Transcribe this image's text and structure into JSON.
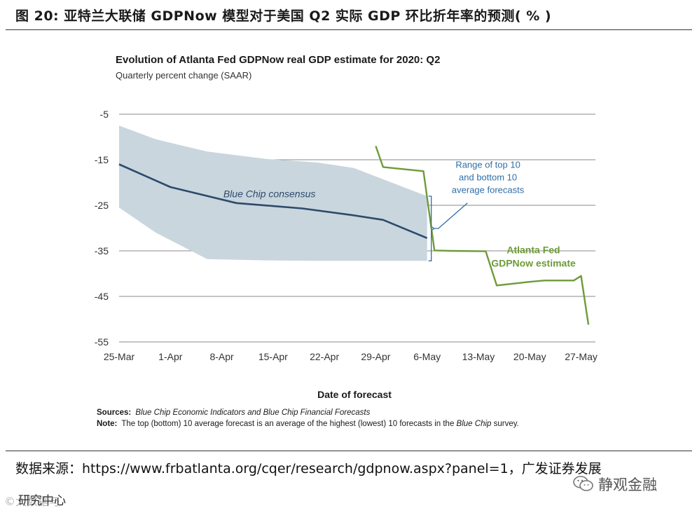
{
  "figure": {
    "title": "图 20: 亚特兰大联储 GDPNow 模型对于美国 Q2 实际 GDP 环比折年率的预测( % )"
  },
  "chart_data": {
    "type": "line",
    "title": "Evolution of Atlanta Fed GDPNow real GDP estimate for 2020: Q2",
    "subtitle": "Quarterly percent change (SAAR)",
    "xlabel": "Date of forecast",
    "ylabel": "",
    "ylim": [
      -55,
      -5
    ],
    "yticks": [
      -5,
      -15,
      -25,
      -35,
      -45,
      -55
    ],
    "x_tick_labels": [
      "25-Mar",
      "1-Apr",
      "8-Apr",
      "15-Apr",
      "22-Apr",
      "29-Apr",
      "6-May",
      "13-May",
      "20-May",
      "27-May"
    ],
    "x_range_days": [
      0,
      64
    ],
    "grid": true,
    "series": [
      {
        "name": "Blue Chip consensus",
        "label": "Blue Chip consensus",
        "color": "#2e4a6b",
        "x": [
          0,
          7,
          16,
          25,
          32,
          36,
          42
        ],
        "y": [
          -16,
          -21,
          -24.5,
          -25.7,
          -27.2,
          -28.2,
          -32.2
        ]
      },
      {
        "name": "Atlanta Fed GDPNow estimate",
        "label": [
          "Atlanta Fed",
          "GDPNow estimate"
        ],
        "color": "#6e9a3a",
        "x": [
          35,
          36,
          41.5,
          43,
          45,
          50,
          51.5,
          56,
          58,
          62,
          63,
          64
        ],
        "y": [
          -12,
          -16.6,
          -17.5,
          -34.9,
          -35,
          -35.1,
          -42.6,
          -41.8,
          -41.5,
          -41.5,
          -40.5,
          -51.2
        ]
      }
    ],
    "band": {
      "name": "Range of top 10 and bottom 10 average forecasts",
      "color": "#c9d6de",
      "x": [
        0,
        5,
        12,
        20,
        27,
        32,
        42
      ],
      "upper": [
        -7.5,
        -10.5,
        -13.2,
        -14.8,
        -15.6,
        -16.8,
        -23
      ],
      "lower": [
        -25.5,
        -31,
        -36.8,
        -37.1,
        -37.2,
        -37.2,
        -37.2
      ]
    },
    "annotations": {
      "band_label": [
        "Range of top 10",
        "and bottom 10",
        "average forecasts"
      ]
    },
    "notes": {
      "sources_label": "Sources:",
      "sources_text": "Blue Chip Economic Indicators and Blue Chip Financial Forecasts",
      "note_label": "Note:",
      "note_text_1": "The top (bottom) 10 average forecast is an average of the highest (lowest) 10 forecasts in the ",
      "note_text_italic": "Blue Chip",
      "note_text_2": " survey."
    }
  },
  "footer": {
    "source_line": "数据来源：https://www.frbatlanta.org/cqer/research/gdpnow.aspx?panel=1，广发证券发展",
    "source_line2": "研究中心",
    "watermark_left": "©大数据与",
    "watermark_right": "静观金融"
  },
  "colors": {
    "consensus_line": "#2e4a6b",
    "gdpnow_line": "#6e9a3a",
    "band_fill": "#c9d6de",
    "annotation_blue": "#2f6fa8",
    "grid": "#8a8a8a"
  }
}
